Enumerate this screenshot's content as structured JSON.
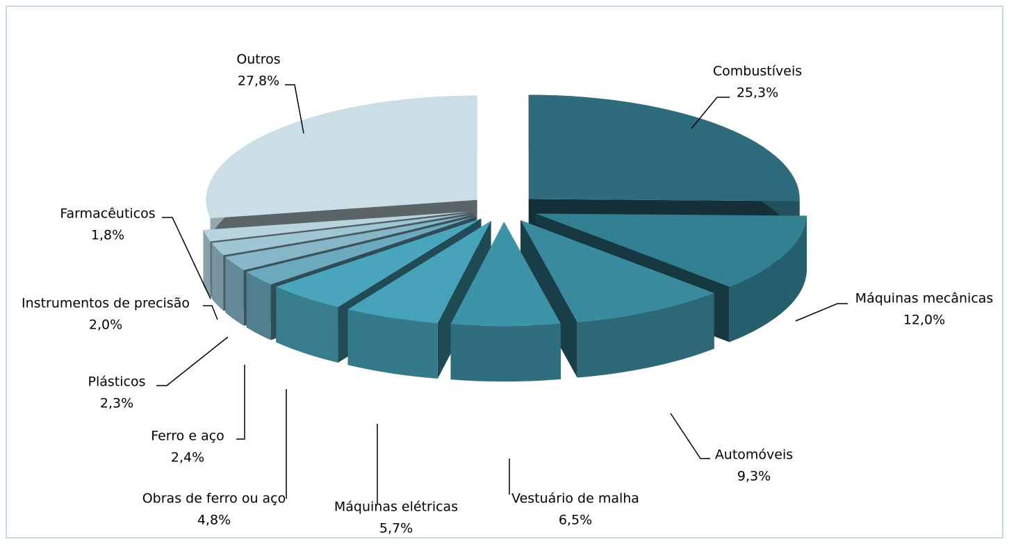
{
  "chart_data": {
    "type": "pie3d",
    "categories": [
      "Combustíveis",
      "Máquinas mecânicas",
      "Automóveis",
      "Vestuário de malha",
      "Máquinas elétricas",
      "Obras de ferro ou aço",
      "Ferro e aço",
      "Plásticos",
      "Instrumentos de precisão",
      "Farmacêuticos",
      "Outros"
    ],
    "values": [
      25.3,
      12.0,
      9.3,
      6.5,
      5.7,
      4.8,
      2.4,
      2.3,
      2.0,
      1.8,
      27.8
    ],
    "value_labels": [
      "25,3%",
      "12,0%",
      "9,3%",
      "6,5%",
      "5,7%",
      "4,8%",
      "2,4%",
      "2,3%",
      "2,0%",
      "1,8%",
      "27,8%"
    ],
    "colors": [
      "#2e6b7c",
      "#317f91",
      "#3a8a9e",
      "#3d93a8",
      "#45a2b8",
      "#4aa6bc",
      "#6aa9be",
      "#86b7c8",
      "#9fc6d4",
      "#b8d5df",
      "#cbdee5"
    ]
  }
}
